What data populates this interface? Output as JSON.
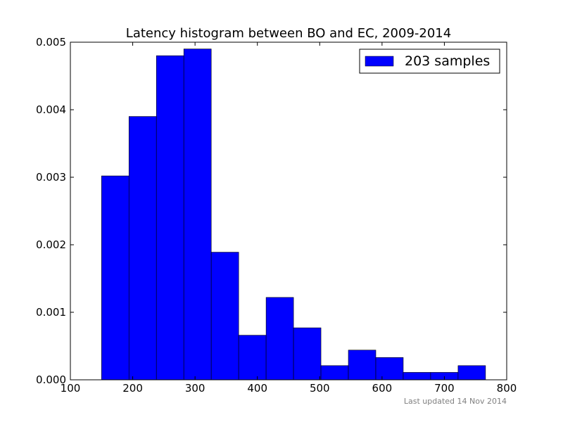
{
  "chart_data": {
    "type": "bar",
    "title": "Latency histogram between BO and EC, 2009-2014",
    "xlabel": "",
    "ylabel": "",
    "xlim": [
      100,
      800
    ],
    "ylim": [
      0,
      0.005
    ],
    "x_ticks": [
      100,
      200,
      300,
      400,
      500,
      600,
      700,
      800
    ],
    "y_ticks": [
      "0.000",
      "0.001",
      "0.002",
      "0.003",
      "0.004",
      "0.005"
    ],
    "bin_edges": [
      150,
      194,
      238,
      282,
      326,
      370,
      414,
      458,
      502,
      546,
      590,
      634,
      678,
      722,
      766
    ],
    "series": [
      {
        "name": "203 samples",
        "color": "#0000ff",
        "values": [
          0.00302,
          0.0039,
          0.0048,
          0.0049,
          0.00189,
          0.00066,
          0.00122,
          0.00077,
          0.00021,
          0.00044,
          0.00033,
          0.00011,
          0.00011,
          0.00021
        ]
      }
    ],
    "grid": false,
    "legend_position": "top-right"
  },
  "footer": {
    "note": "Last updated 14 Nov 2014"
  }
}
